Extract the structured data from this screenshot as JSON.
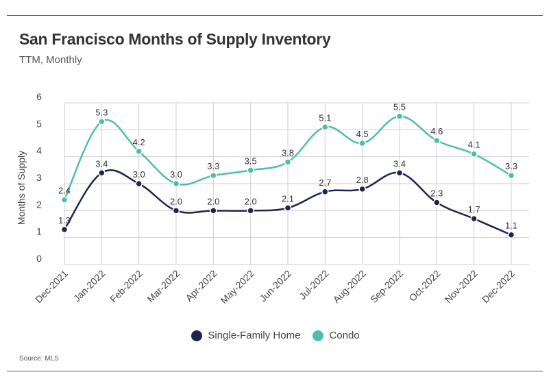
{
  "title": "San Francisco Months of Supply Inventory",
  "subtitle": "TTM, Monthly",
  "source": "Source:  MLS",
  "colors": {
    "sfh": "#1c2450",
    "condo": "#4dbfa8",
    "grid": "#cfcfcf"
  },
  "chart_data": {
    "type": "line",
    "categories": [
      "Dec-2021",
      "Jan-2022",
      "Feb-2022",
      "Mar-2022",
      "Apr-2022",
      "May-2022",
      "Jun-2022",
      "Jul-2022",
      "Aug-2022",
      "Sep-2022",
      "Oct-2022",
      "Nov-2022",
      "Dec-2022"
    ],
    "series": [
      {
        "name": "Single-Family Home",
        "values": [
          1.3,
          3.4,
          3.0,
          2.0,
          2.0,
          2.0,
          2.1,
          2.7,
          2.8,
          3.4,
          2.3,
          1.7,
          1.1
        ]
      },
      {
        "name": "Condo",
        "values": [
          2.4,
          5.3,
          4.2,
          3.0,
          3.3,
          3.5,
          3.8,
          5.1,
          4.5,
          5.5,
          4.6,
          4.1,
          3.3
        ]
      }
    ],
    "ylabel": "Months of Supply",
    "ylim": [
      0,
      6
    ],
    "yticks": [
      0,
      1,
      2,
      3,
      4,
      5,
      6
    ],
    "grid": true,
    "legend": "bottom"
  }
}
